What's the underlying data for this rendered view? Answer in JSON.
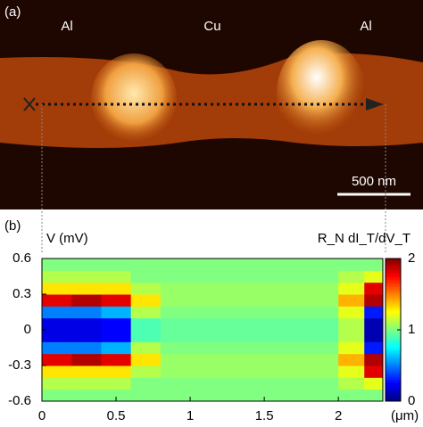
{
  "panel_a": {
    "label": "(a)",
    "region_labels": [
      "Al",
      "Cu",
      "Al"
    ],
    "scale_bar": "500 nm"
  },
  "chart_data": {
    "type": "heatmap",
    "panel_label": "(b)",
    "ylabel": "V (mV)",
    "xlabel": "(μm)",
    "colorbar_label": "R_N dI_T/dV_T",
    "x": [
      0.1,
      0.3,
      0.5,
      0.7,
      0.9,
      1.1,
      1.3,
      1.5,
      1.7,
      1.9,
      2.1,
      2.25
    ],
    "y": [
      -0.55,
      -0.45,
      -0.35,
      -0.25,
      -0.15,
      -0.05,
      0.05,
      0.15,
      0.25,
      0.35,
      0.45,
      0.55
    ],
    "values": [
      [
        1.0,
        1.0,
        1.0,
        1.0,
        1.0,
        1.0,
        1.0,
        1.0,
        1.0,
        1.0,
        1.0,
        1.0
      ],
      [
        1.1,
        1.1,
        1.1,
        1.0,
        1.0,
        1.0,
        1.0,
        1.0,
        1.0,
        1.0,
        1.1,
        1.2
      ],
      [
        1.3,
        1.3,
        1.3,
        1.1,
        1.05,
        1.05,
        1.05,
        1.05,
        1.05,
        1.05,
        1.2,
        1.8
      ],
      [
        1.8,
        1.9,
        1.8,
        1.3,
        1.05,
        1.05,
        1.05,
        1.05,
        1.05,
        1.05,
        1.4,
        1.9
      ],
      [
        0.5,
        0.5,
        0.6,
        1.1,
        1.0,
        1.0,
        1.0,
        1.0,
        1.0,
        1.0,
        1.2,
        0.3
      ],
      [
        0.2,
        0.2,
        0.25,
        0.9,
        0.95,
        0.95,
        0.95,
        0.95,
        0.95,
        0.95,
        1.1,
        0.1
      ],
      [
        0.2,
        0.2,
        0.25,
        0.9,
        0.95,
        0.95,
        0.95,
        0.95,
        0.95,
        0.95,
        1.1,
        0.1
      ],
      [
        0.5,
        0.5,
        0.6,
        1.1,
        1.0,
        1.0,
        1.0,
        1.0,
        1.0,
        1.0,
        1.2,
        0.3
      ],
      [
        1.8,
        1.9,
        1.8,
        1.3,
        1.05,
        1.05,
        1.05,
        1.05,
        1.05,
        1.05,
        1.4,
        1.9
      ],
      [
        1.3,
        1.3,
        1.3,
        1.1,
        1.05,
        1.05,
        1.05,
        1.05,
        1.05,
        1.05,
        1.2,
        1.8
      ],
      [
        1.1,
        1.1,
        1.1,
        1.0,
        1.0,
        1.0,
        1.0,
        1.0,
        1.0,
        1.0,
        1.1,
        1.2
      ],
      [
        1.0,
        1.0,
        1.0,
        1.0,
        1.0,
        1.0,
        1.0,
        1.0,
        1.0,
        1.0,
        1.0,
        1.0
      ]
    ],
    "xlim": [
      0,
      2.3
    ],
    "ylim": [
      -0.6,
      0.6
    ],
    "xticks": [
      0,
      0.5,
      1,
      1.5,
      2
    ],
    "yticks": [
      0.6,
      0.3,
      0,
      -0.3,
      -0.6
    ],
    "clim": [
      0,
      2
    ],
    "cticks": [
      2,
      1,
      0
    ],
    "colormap": "jet"
  }
}
